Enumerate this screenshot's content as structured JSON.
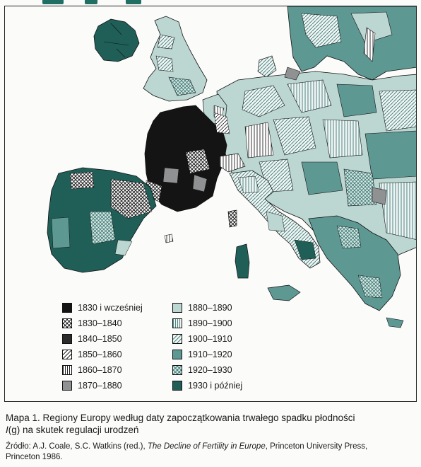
{
  "legend": {
    "items": [
      {
        "label": "1830 i wcześniej",
        "pattern": "solid-black"
      },
      {
        "label": "1830–1840",
        "pattern": "crosshatch"
      },
      {
        "label": "1840–1850",
        "pattern": "solid-darkgray"
      },
      {
        "label": "1850–1860",
        "pattern": "diagonal-hatch"
      },
      {
        "label": "1860–1870",
        "pattern": "vertical-lines"
      },
      {
        "label": "1870–1880",
        "pattern": "solid-midgray"
      },
      {
        "label": "1880–1890",
        "pattern": "solid-lightteal"
      },
      {
        "label": "1890–1900",
        "pattern": "vertical-teal"
      },
      {
        "label": "1900–1910",
        "pattern": "diagonal-teal"
      },
      {
        "label": "1910–1920",
        "pattern": "solid-midteal"
      },
      {
        "label": "1920–1930",
        "pattern": "crosshatch-teal"
      },
      {
        "label": "1930 i później",
        "pattern": "solid-darkteal"
      }
    ]
  },
  "caption": {
    "line1": "Mapa 1. Regiony Europy według daty zapoczątkowania trwałego spadku płodności",
    "line2_var": "I",
    "line2_g": "(g)",
    "line2_rest": " na skutek regulacji urodzeń"
  },
  "source": {
    "prefix": "Źródło: A.J. Coale, S.C. Watkins (red.), ",
    "title": "The Decline of Fertility in Europe",
    "suffix": ", Princeton University Press,",
    "line2": "Princeton 1986."
  },
  "colors": {
    "black": "#141414",
    "darkgray": "#2b2b2b",
    "midgray": "#8f9192",
    "lightteal": "#bcd6d2",
    "midteal": "#5e9892",
    "darkteal": "#1f5f57",
    "ink": "#1a1a1a"
  }
}
